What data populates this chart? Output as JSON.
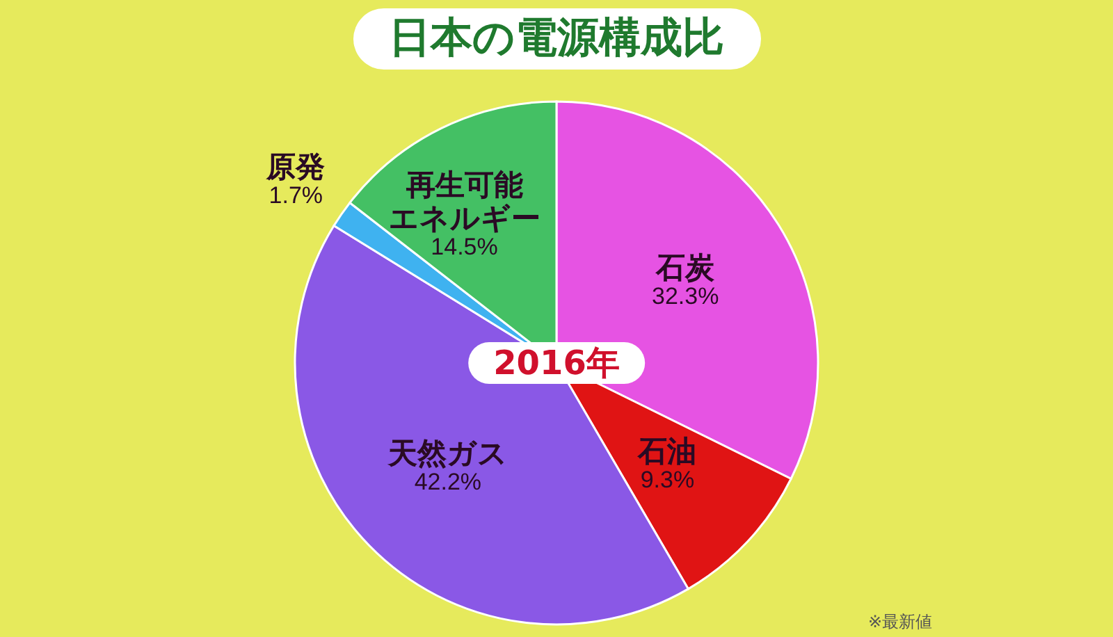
{
  "chart_data": {
    "type": "pie",
    "title": "日本の電源構成比",
    "categories": [
      "石炭",
      "石油",
      "天然ガス",
      "原発",
      "再生可能エネルギー"
    ],
    "values": [
      32.3,
      9.3,
      42.2,
      1.7,
      14.5
    ],
    "value_labels": [
      "32.3%",
      "9.3%",
      "42.2%",
      "1.7%",
      "14.5%"
    ],
    "colors": [
      "#e653e3",
      "#e01414",
      "#8a58e6",
      "#3fb2f0",
      "#44c064"
    ],
    "annotations": [
      "2016年",
      "※最新値"
    ]
  }
}
